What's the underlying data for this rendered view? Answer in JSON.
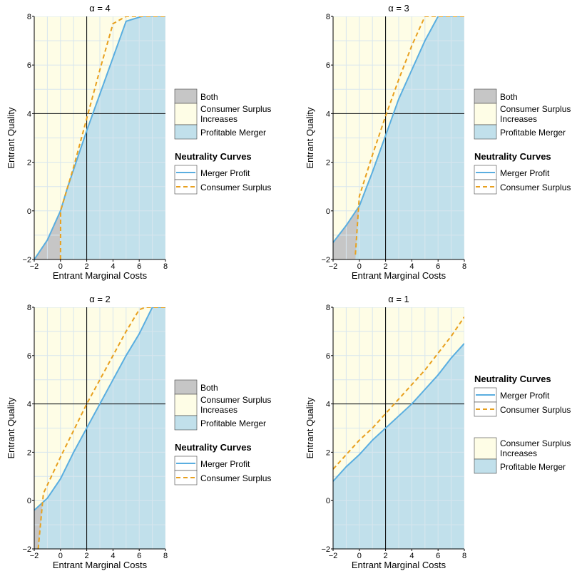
{
  "colors": {
    "consumer_surplus_fill": "#fefde6",
    "profitable_fill": "#c1e0eb",
    "both_fill": "#c6c6c6",
    "merger_profit_line": "#5aaee0",
    "consumer_surplus_line": "#e8a01e",
    "grid": "#d8e6ee"
  },
  "legend_text": {
    "both": "Both",
    "cs_line1": "Consumer Surplus",
    "cs_line2": "Increases",
    "profitable": "Profitable Merger",
    "neutrality_title": "Neutrality Curves",
    "merger_profit": "Merger Profit",
    "consumer_surplus": "Consumer Surplus"
  },
  "chart_data": [
    {
      "type": "area",
      "title": "α = 4",
      "xlabel": "Entrant Marginal Costs",
      "ylabel": "Entrant Quality",
      "xlim": [
        -2,
        8
      ],
      "ylim": [
        -2,
        8
      ],
      "x_ticks": [
        "−2",
        "0",
        "2",
        "4",
        "6",
        "8"
      ],
      "y_ticks": [
        "−2",
        "0",
        "2",
        "4",
        "6",
        "8"
      ],
      "reference_lines": {
        "x": 2,
        "y": 4
      },
      "grid": true,
      "legend_has_both": true,
      "legend_order": "regions-first",
      "series": [
        {
          "name": "Merger Profit",
          "x": [
            -2,
            -1,
            0,
            0.5,
            1,
            2,
            3,
            4,
            5,
            6.2,
            8
          ],
          "y": [
            -2,
            -1.2,
            0,
            0.9,
            1.7,
            3.3,
            4.8,
            6.3,
            7.8,
            8,
            8
          ]
        },
        {
          "name": "Consumer Surplus",
          "x": [
            0,
            0.01,
            1,
            2,
            3,
            4,
            5,
            5.4,
            8
          ],
          "y": [
            -2,
            0,
            1.8,
            3.8,
            5.8,
            7.7,
            8,
            8,
            8
          ]
        }
      ]
    },
    {
      "type": "area",
      "title": "α = 3",
      "xlabel": "Entrant Marginal Costs",
      "ylabel": "Entrant Quality",
      "xlim": [
        -2,
        8
      ],
      "ylim": [
        -2,
        8
      ],
      "x_ticks": [
        "−2",
        "0",
        "2",
        "4",
        "6",
        "8"
      ],
      "y_ticks": [
        "−2",
        "0",
        "2",
        "4",
        "6",
        "8"
      ],
      "reference_lines": {
        "x": 2,
        "y": 4
      },
      "grid": true,
      "legend_has_both": true,
      "legend_order": "regions-first",
      "series": [
        {
          "name": "Merger Profit",
          "x": [
            -2,
            -1,
            0,
            1,
            2,
            3,
            4,
            5,
            6,
            8
          ],
          "y": [
            -1.3,
            -0.6,
            0.2,
            1.6,
            3.1,
            4.6,
            5.8,
            7.0,
            8,
            8
          ]
        },
        {
          "name": "Consumer Surplus",
          "x": [
            -0.3,
            0,
            1,
            2,
            3,
            4,
            5,
            5.7,
            8
          ],
          "y": [
            -1.8,
            0.6,
            2.3,
            3.9,
            5.4,
            6.8,
            8,
            8,
            8
          ]
        }
      ]
    },
    {
      "type": "area",
      "title": "α = 2",
      "xlabel": "Entrant Marginal Costs",
      "ylabel": "Entrant Quality",
      "xlim": [
        -2,
        8
      ],
      "ylim": [
        -2,
        8
      ],
      "x_ticks": [
        "−2",
        "0",
        "2",
        "4",
        "6",
        "8"
      ],
      "y_ticks": [
        "−2",
        "0",
        "2",
        "4",
        "6",
        "8"
      ],
      "reference_lines": {
        "x": 2,
        "y": 4
      },
      "grid": true,
      "legend_has_both": true,
      "legend_order": "regions-first",
      "series": [
        {
          "name": "Merger Profit",
          "x": [
            -2,
            -1,
            0,
            1,
            2,
            3,
            4,
            5,
            6,
            7,
            8
          ],
          "y": [
            -0.4,
            0.1,
            0.9,
            2.0,
            3.0,
            4.0,
            5.0,
            6.0,
            6.9,
            8,
            8
          ]
        },
        {
          "name": "Consumer Surplus",
          "x": [
            -1.7,
            -1.3,
            0,
            1,
            2,
            3,
            4,
            5,
            6,
            6.5,
            8
          ],
          "y": [
            -2,
            0.3,
            1.8,
            2.9,
            4.0,
            5.0,
            6.0,
            7.0,
            7.9,
            8,
            8
          ]
        }
      ]
    },
    {
      "type": "area",
      "title": "α = 1",
      "xlabel": "Entrant Marginal Costs",
      "ylabel": "Entrant Quality",
      "xlim": [
        -2,
        8
      ],
      "ylim": [
        -2,
        8
      ],
      "x_ticks": [
        "−2",
        "0",
        "2",
        "4",
        "6",
        "8"
      ],
      "y_ticks": [
        "−2",
        "0",
        "2",
        "4",
        "6",
        "8"
      ],
      "reference_lines": {
        "x": 2,
        "y": 4
      },
      "grid": true,
      "legend_has_both": false,
      "legend_order": "curves-first",
      "series": [
        {
          "name": "Merger Profit",
          "x": [
            -2,
            -1,
            0,
            1,
            2,
            3,
            4,
            5,
            6,
            7,
            8
          ],
          "y": [
            0.8,
            1.4,
            1.9,
            2.5,
            3.0,
            3.5,
            4.0,
            4.6,
            5.2,
            5.9,
            6.5
          ]
        },
        {
          "name": "Consumer Surplus",
          "x": [
            -2,
            -1,
            0,
            1,
            2,
            3,
            4,
            5,
            6,
            7,
            8
          ],
          "y": [
            1.3,
            1.9,
            2.5,
            3.0,
            3.6,
            4.2,
            4.8,
            5.4,
            6.1,
            6.8,
            7.6
          ]
        }
      ]
    }
  ]
}
